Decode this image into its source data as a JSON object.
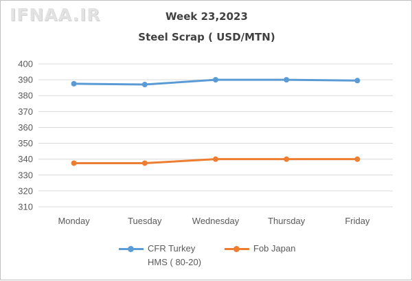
{
  "watermark": "IFNAA.IR",
  "chart_data": {
    "type": "line",
    "title": "Week 23,2023",
    "subtitle": "Steel Scrap ( USD/MTN)",
    "categories": [
      "Monday",
      "Tuesday",
      "Wednesday",
      "Thursday",
      "Friday"
    ],
    "series": [
      {
        "name_line1": "CFR Turkey",
        "name_line2": "HMS ( 80-20)",
        "color": "#5b9bd5",
        "values": [
          387.5,
          387,
          390,
          390,
          389.5
        ]
      },
      {
        "name_line1": "Fob Japan",
        "color": "#ed7d31",
        "values": [
          337.5,
          337.5,
          340,
          340,
          340
        ]
      }
    ],
    "ylim": [
      310,
      400
    ],
    "yticks": [
      310,
      320,
      330,
      340,
      350,
      360,
      370,
      380,
      390,
      400
    ],
    "grid": true,
    "legend_position": "bottom"
  }
}
